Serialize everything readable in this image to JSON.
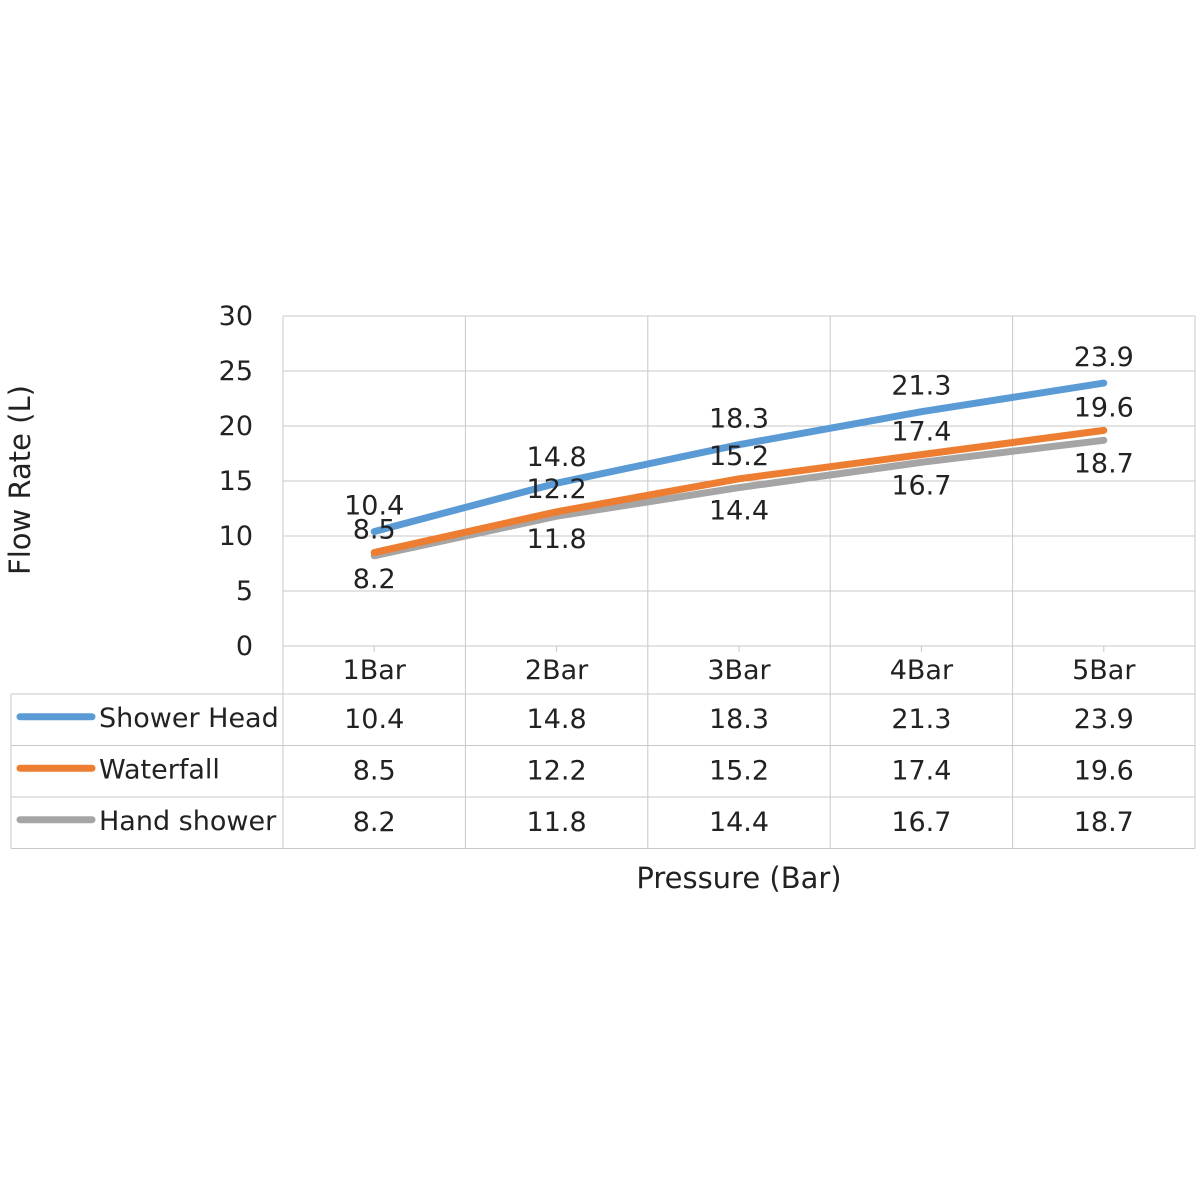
{
  "chart_data": {
    "type": "line",
    "title": "",
    "xlabel": "Pressure (Bar)",
    "ylabel": "Flow Rate (L)",
    "categories": [
      "1Bar",
      "2Bar",
      "3Bar",
      "4Bar",
      "5Bar"
    ],
    "ylim": [
      0,
      30
    ],
    "yticks": [
      "0",
      "5",
      "10",
      "15",
      "20",
      "25",
      "30"
    ],
    "grid": true,
    "legend": "data-table-below",
    "series": [
      {
        "name": "Shower Head",
        "color": "#5b9bd5",
        "values": [
          10.4,
          14.8,
          18.3,
          21.3,
          23.9
        ],
        "labels": [
          "10.4",
          "14.8",
          "18.3",
          "21.3",
          "23.9"
        ]
      },
      {
        "name": "Waterfall",
        "color": "#ed7d31",
        "values": [
          8.5,
          12.2,
          15.2,
          17.4,
          19.6
        ],
        "labels": [
          "8.5",
          "12.2",
          "15.2",
          "17.4",
          "19.6"
        ]
      },
      {
        "name": "Hand shower",
        "color": "#a5a5a5",
        "values": [
          8.2,
          11.8,
          14.4,
          16.7,
          18.7
        ],
        "labels": [
          "8.2",
          "11.8",
          "14.4",
          "16.7",
          "18.7"
        ]
      }
    ]
  }
}
